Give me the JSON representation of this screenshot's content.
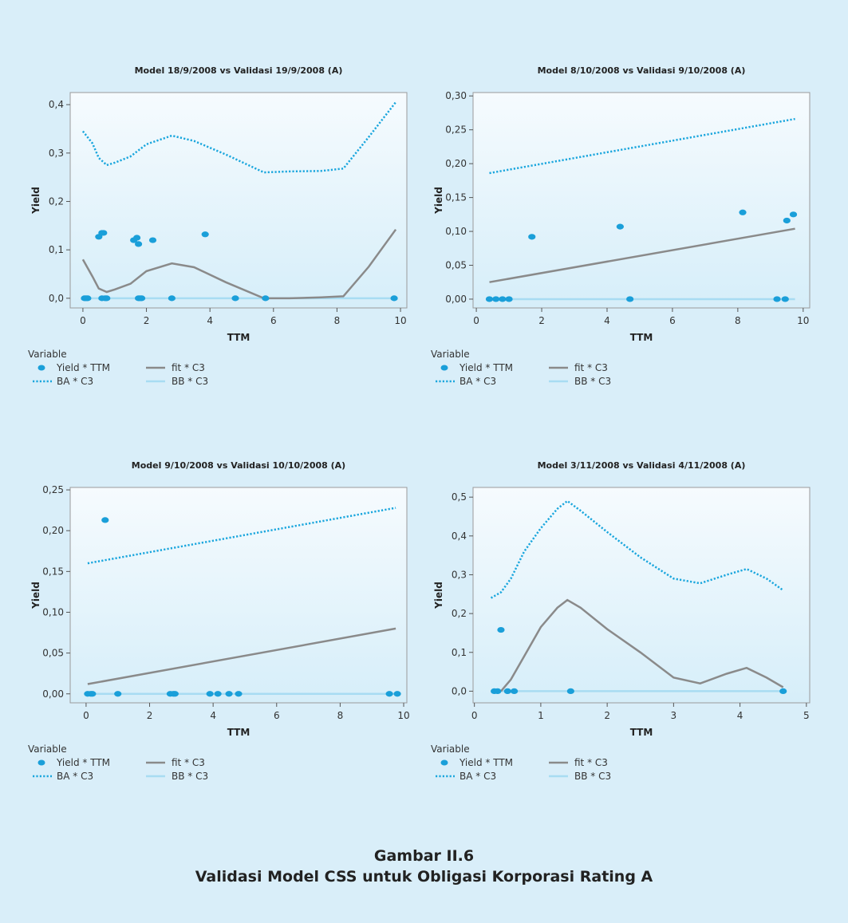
{
  "caption": {
    "line1": "Gambar II.6",
    "line2": "Validasi Model CSS untuk Obligasi Korporasi Rating A"
  },
  "colors": {
    "page_bg": "#d9eef9",
    "point": "#1a9fd9",
    "ba": "#1aa6dd",
    "fit": "#8a8a8a",
    "bb": "#a8dcf2"
  },
  "legend": {
    "title": "Variable",
    "entries": [
      "Yield * TTM",
      "fit * C3",
      "BA * C3",
      "BB * C3"
    ]
  },
  "chart_data": [
    {
      "type": "line",
      "title": "Model 18/9/2008 vs Validasi 19/9/2008 (A)",
      "xlabel": "TTM",
      "ylabel": "Yield",
      "xlim": [
        -0.4,
        10.2
      ],
      "ylim": [
        -0.02,
        0.425
      ],
      "xticks": [
        0,
        2,
        4,
        6,
        8,
        10
      ],
      "xtick_labels": [
        "0",
        "2",
        "4",
        "6",
        "8",
        "10"
      ],
      "yticks": [
        0,
        0.1,
        0.2,
        0.3,
        0.4
      ],
      "ytick_labels": [
        "0,0",
        "0,1",
        "0,2",
        "0,3",
        "0,4"
      ],
      "series": [
        {
          "name": "Yield * TTM",
          "kind": "scatter",
          "x": [
            0.05,
            0.1,
            0.15,
            0.5,
            0.6,
            0.65,
            0.7,
            1.6,
            1.7,
            1.75,
            1.8,
            2.2,
            3.85,
            0.6,
            0.75,
            1.75,
            1.85,
            2.8,
            4.8,
            5.75,
            9.8
          ],
          "y": [
            0,
            0,
            0,
            0.127,
            0.135,
            0.135,
            0,
            0.12,
            0.125,
            0.112,
            0,
            0.12,
            0.132,
            0,
            0,
            0,
            0,
            0,
            0,
            0,
            0
          ]
        },
        {
          "name": "BA * C3",
          "kind": "dotted",
          "x": [
            0,
            0.3,
            0.5,
            0.75,
            1,
            1.5,
            2,
            2.8,
            3.5,
            4.5,
            5.7,
            6.5,
            7.5,
            8.2,
            9,
            9.85
          ],
          "y": [
            0.345,
            0.32,
            0.29,
            0.275,
            0.28,
            0.293,
            0.318,
            0.336,
            0.325,
            0.297,
            0.26,
            0.262,
            0.263,
            0.268,
            0.333,
            0.405
          ]
        },
        {
          "name": "fit * C3",
          "kind": "solid",
          "x": [
            0,
            0.3,
            0.5,
            0.75,
            1,
            1.5,
            2,
            2.8,
            3.5,
            4.5,
            5.7,
            6.5,
            7.5,
            8.2,
            9,
            9.85
          ],
          "y": [
            0.08,
            0.045,
            0.02,
            0.013,
            0.018,
            0.03,
            0.056,
            0.072,
            0.064,
            0.033,
            0,
            0,
            0.002,
            0.004,
            0.065,
            0.142
          ]
        },
        {
          "name": "BB * C3",
          "kind": "light",
          "x": [
            0,
            9.85
          ],
          "y": [
            0,
            0
          ]
        }
      ]
    },
    {
      "type": "line",
      "title": "Model 8/10/2008 vs Validasi 9/10/2008 (A)",
      "xlabel": "TTM",
      "ylabel": "Yield",
      "xlim": [
        -0.1,
        10.2
      ],
      "ylim": [
        -0.013,
        0.305
      ],
      "xticks": [
        0,
        2,
        4,
        6,
        8,
        10
      ],
      "xtick_labels": [
        "0",
        "2",
        "4",
        "6",
        "8",
        "10"
      ],
      "yticks": [
        0,
        0.05,
        0.1,
        0.15,
        0.2,
        0.25,
        0.3
      ],
      "ytick_labels": [
        "0,00",
        "0,05",
        "0,10",
        "0,15",
        "0,20",
        "0,25",
        "0,30"
      ],
      "series": [
        {
          "name": "Yield * TTM",
          "kind": "scatter",
          "x": [
            0.4,
            0.6,
            0.8,
            1.0,
            1.7,
            4.4,
            4.7,
            8.15,
            9.2,
            9.45,
            9.5,
            9.7
          ],
          "y": [
            0,
            0,
            0,
            0,
            0.092,
            0.107,
            0,
            0.128,
            0,
            0,
            0.116,
            0.125
          ]
        },
        {
          "name": "BA * C3",
          "kind": "dotted",
          "x": [
            0.4,
            9.75
          ],
          "y": [
            0.186,
            0.266
          ]
        },
        {
          "name": "fit * C3",
          "kind": "solid",
          "x": [
            0.4,
            9.75
          ],
          "y": [
            0.025,
            0.104
          ]
        },
        {
          "name": "BB * C3",
          "kind": "light",
          "x": [
            0.4,
            9.75
          ],
          "y": [
            0,
            0
          ]
        }
      ]
    },
    {
      "type": "line",
      "title": "Model 9/10/2008 vs Validasi 10/10/2008 (A)",
      "xlabel": "TTM",
      "ylabel": "Yield",
      "xlim": [
        -0.5,
        10.1
      ],
      "ylim": [
        -0.011,
        0.253
      ],
      "xticks": [
        0,
        2,
        4,
        6,
        8,
        10
      ],
      "xtick_labels": [
        "0",
        "2",
        "4",
        "6",
        "8",
        "10"
      ],
      "yticks": [
        0,
        0.05,
        0.1,
        0.15,
        0.2,
        0.25
      ],
      "ytick_labels": [
        "0,00",
        "0,05",
        "0,10",
        "0,15",
        "0,20",
        "0,25"
      ],
      "series": [
        {
          "name": "Yield * TTM",
          "kind": "scatter",
          "x": [
            0.05,
            0.15,
            0.2,
            0.6,
            1.0,
            2.65,
            2.75,
            2.8,
            3.9,
            4.15,
            4.5,
            4.8,
            9.55,
            9.8
          ],
          "y": [
            0,
            0,
            0,
            0.213,
            0,
            0,
            0,
            0,
            0,
            0,
            0,
            0,
            0,
            0
          ]
        },
        {
          "name": "BA * C3",
          "kind": "dotted",
          "x": [
            0.05,
            9.75
          ],
          "y": [
            0.16,
            0.228
          ]
        },
        {
          "name": "fit * C3",
          "kind": "solid",
          "x": [
            0.05,
            9.75
          ],
          "y": [
            0.012,
            0.08
          ]
        },
        {
          "name": "BB * C3",
          "kind": "light",
          "x": [
            0.05,
            9.75
          ],
          "y": [
            0,
            0
          ]
        }
      ]
    },
    {
      "type": "line",
      "title": "Model 3/11/2008 vs Validasi 4/11/2008 (A)",
      "xlabel": "TTM",
      "ylabel": "Yield",
      "xlim": [
        -0.02,
        5.05
      ],
      "ylim": [
        -0.03,
        0.525
      ],
      "xticks": [
        0,
        1,
        2,
        3,
        4,
        5
      ],
      "xtick_labels": [
        "0",
        "1",
        "2",
        "3",
        "4",
        "5"
      ],
      "yticks": [
        0,
        0.1,
        0.2,
        0.3,
        0.4,
        0.5
      ],
      "ytick_labels": [
        "0,0",
        "0,1",
        "0,2",
        "0,3",
        "0,4",
        "0,5"
      ],
      "series": [
        {
          "name": "Yield * TTM",
          "kind": "scatter",
          "x": [
            0.3,
            0.35,
            0.4,
            0.5,
            0.6,
            1.45,
            4.65
          ],
          "y": [
            0,
            0,
            0.158,
            0,
            0,
            0,
            0
          ]
        },
        {
          "name": "BA * C3",
          "kind": "dotted",
          "x": [
            0.25,
            0.4,
            0.55,
            0.75,
            1.0,
            1.25,
            1.4,
            1.6,
            2.0,
            2.5,
            3.0,
            3.4,
            3.8,
            4.1,
            4.4,
            4.65
          ],
          "y": [
            0.24,
            0.255,
            0.29,
            0.36,
            0.42,
            0.47,
            0.49,
            0.465,
            0.41,
            0.345,
            0.29,
            0.278,
            0.3,
            0.315,
            0.29,
            0.26
          ]
        },
        {
          "name": "fit * C3",
          "kind": "solid",
          "x": [
            0.4,
            0.55,
            0.75,
            1.0,
            1.25,
            1.4,
            1.6,
            2.0,
            2.5,
            3.0,
            3.4,
            3.8,
            4.1,
            4.4,
            4.65
          ],
          "y": [
            0,
            0.03,
            0.09,
            0.165,
            0.215,
            0.235,
            0.215,
            0.16,
            0.1,
            0.035,
            0.02,
            0.045,
            0.06,
            0.035,
            0.01
          ]
        },
        {
          "name": "BB * C3",
          "kind": "light",
          "x": [
            0.25,
            4.65
          ],
          "y": [
            0,
            0
          ]
        }
      ]
    }
  ]
}
